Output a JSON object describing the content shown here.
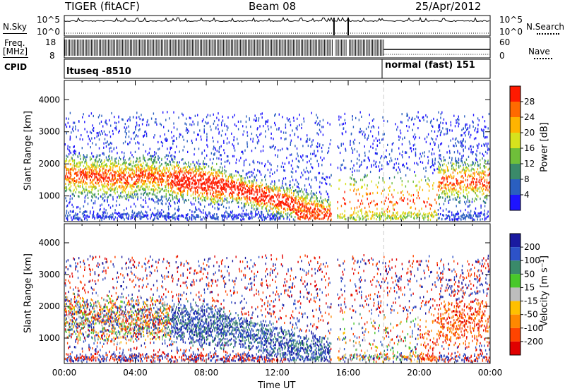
{
  "header": {
    "title": "TIGER (fitACF)",
    "beam": "Beam 08",
    "date": "25/Apr/2012"
  },
  "panels": {
    "nsky": {
      "label": "N.Sky",
      "left_ticks": [
        "10^5",
        "10^0"
      ],
      "right_ticks": [
        "10^5",
        "10^0"
      ],
      "right_label": "N.Search"
    },
    "freq": {
      "label_line1": "Freq.",
      "label_line2": "[MHz]",
      "left_ticks": [
        "18",
        "8"
      ],
      "right_ticks": [
        "60",
        "0"
      ],
      "right_label": "Nave"
    },
    "cpid": {
      "label": "CPID",
      "modes": [
        "ltuseq -8510",
        "normal (fast) 151"
      ]
    }
  },
  "chart_data": [
    {
      "type": "heatmap",
      "name": "power",
      "xlabel": "",
      "ylabel": "Slant Range [km]",
      "yticks": [
        "1000",
        "2000",
        "3000",
        "4000"
      ],
      "ylim": [
        200,
        4600
      ],
      "colorbar": {
        "label": "Power [dB]",
        "ticks": [
          "4",
          "8",
          "12",
          "16",
          "20",
          "24",
          "28"
        ],
        "colors": [
          "#1e14ff",
          "#2a5fc0",
          "#3a8a6a",
          "#6fbf3a",
          "#d7e21d",
          "#ffb400",
          "#ff6a00",
          "#ff1a00"
        ]
      }
    },
    {
      "type": "heatmap",
      "name": "velocity",
      "xlabel": "Time UT",
      "ylabel": "Slant Range [km]",
      "yticks": [
        "1000",
        "2000",
        "3000",
        "4000"
      ],
      "xticks": [
        "00:00",
        "04:00",
        "08:00",
        "12:00",
        "16:00",
        "20:00",
        "00:00"
      ],
      "ylim": [
        200,
        4600
      ],
      "colorbar": {
        "label": "Velocity [m s⁻¹]",
        "ticks": [
          "200",
          "100",
          "50",
          "15",
          "-15",
          "-50",
          "-100",
          "-200"
        ],
        "colors": [
          "#1a1aa0",
          "#2d52c8",
          "#3a8a6a",
          "#48c82a",
          "#bdbdbd",
          "#ffc000",
          "#ff8800",
          "#ff4400",
          "#e00000"
        ]
      }
    }
  ]
}
